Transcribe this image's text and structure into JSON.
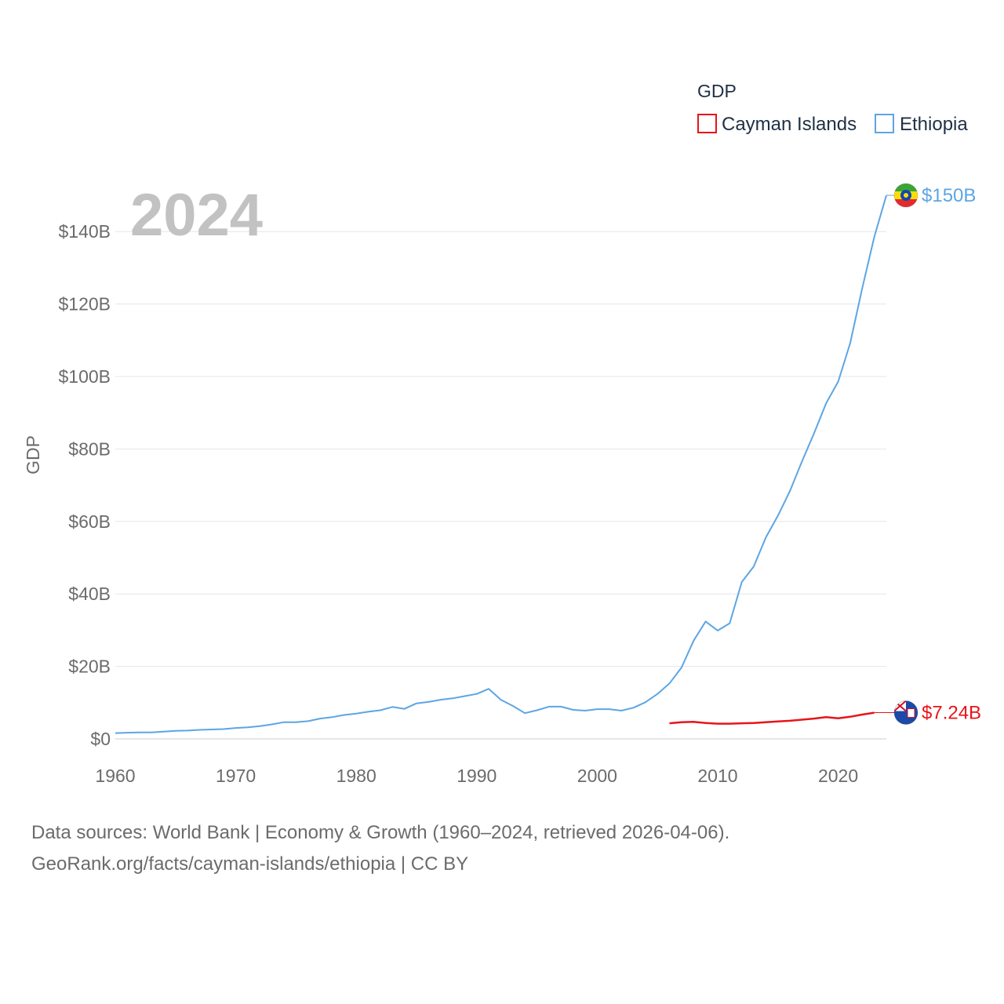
{
  "chart_data": {
    "type": "line",
    "title": "GDP",
    "ylabel": "GDP",
    "year_label": "2024",
    "xlim": [
      1960,
      2024
    ],
    "ylim": [
      0,
      150
    ],
    "x_ticks": [
      1960,
      1970,
      1980,
      1990,
      2000,
      2010,
      2020
    ],
    "y_ticks": [
      {
        "value": 0,
        "label": "$0"
      },
      {
        "value": 20,
        "label": "$20B"
      },
      {
        "value": 40,
        "label": "$40B"
      },
      {
        "value": 60,
        "label": "$60B"
      },
      {
        "value": 80,
        "label": "$80B"
      },
      {
        "value": 100,
        "label": "$100B"
      },
      {
        "value": 120,
        "label": "$120B"
      },
      {
        "value": 140,
        "label": "$140B"
      }
    ],
    "legend": {
      "title": "GDP",
      "placement": "top-right"
    },
    "series": [
      {
        "name": "Cayman Islands",
        "color": "#e8141a",
        "end_label": "$7.24B",
        "x": [
          2006,
          2007,
          2008,
          2009,
          2010,
          2011,
          2012,
          2013,
          2014,
          2015,
          2016,
          2017,
          2018,
          2019,
          2020,
          2021,
          2022,
          2023
        ],
        "values": [
          4.3,
          4.6,
          4.7,
          4.4,
          4.2,
          4.2,
          4.3,
          4.4,
          4.6,
          4.8,
          5.0,
          5.3,
          5.6,
          6.0,
          5.7,
          6.1,
          6.7,
          7.24
        ]
      },
      {
        "name": "Ethiopia",
        "color": "#5da5e3",
        "end_label": "$150B",
        "x": [
          1960,
          1961,
          1962,
          1963,
          1964,
          1965,
          1966,
          1967,
          1968,
          1969,
          1970,
          1971,
          1972,
          1973,
          1974,
          1975,
          1976,
          1977,
          1978,
          1979,
          1980,
          1981,
          1982,
          1983,
          1984,
          1985,
          1986,
          1987,
          1988,
          1989,
          1990,
          1991,
          1992,
          1993,
          1994,
          1995,
          1996,
          1997,
          1998,
          1999,
          2000,
          2001,
          2002,
          2003,
          2004,
          2005,
          2006,
          2007,
          2008,
          2009,
          2010,
          2011,
          2012,
          2013,
          2014,
          2015,
          2016,
          2017,
          2018,
          2019,
          2020,
          2021,
          2022,
          2023,
          2024
        ],
        "values": [
          1.6,
          1.7,
          1.8,
          1.8,
          2.0,
          2.2,
          2.3,
          2.5,
          2.6,
          2.7,
          3.0,
          3.2,
          3.5,
          4.0,
          4.6,
          4.6,
          4.9,
          5.6,
          6.0,
          6.6,
          7.0,
          7.5,
          7.9,
          8.8,
          8.3,
          9.8,
          10.2,
          10.8,
          11.2,
          11.8,
          12.4,
          13.8,
          10.8,
          9.1,
          7.1,
          7.9,
          8.9,
          8.9,
          8.0,
          7.8,
          8.2,
          8.2,
          7.8,
          8.6,
          10.1,
          12.4,
          15.3,
          19.7,
          27.1,
          32.4,
          29.9,
          31.9,
          43.3,
          47.6,
          55.6,
          61.6,
          68.4,
          76.6,
          84.3,
          92.6,
          98.6,
          109.2,
          124.4,
          138.5,
          150.0
        ]
      }
    ]
  },
  "source": {
    "line1": "Data sources: World Bank | Economy & Growth (1960–2024, retrieved 2026-04-06).",
    "line2": "GeoRank.org/facts/cayman-islands/ethiopia | CC BY"
  }
}
